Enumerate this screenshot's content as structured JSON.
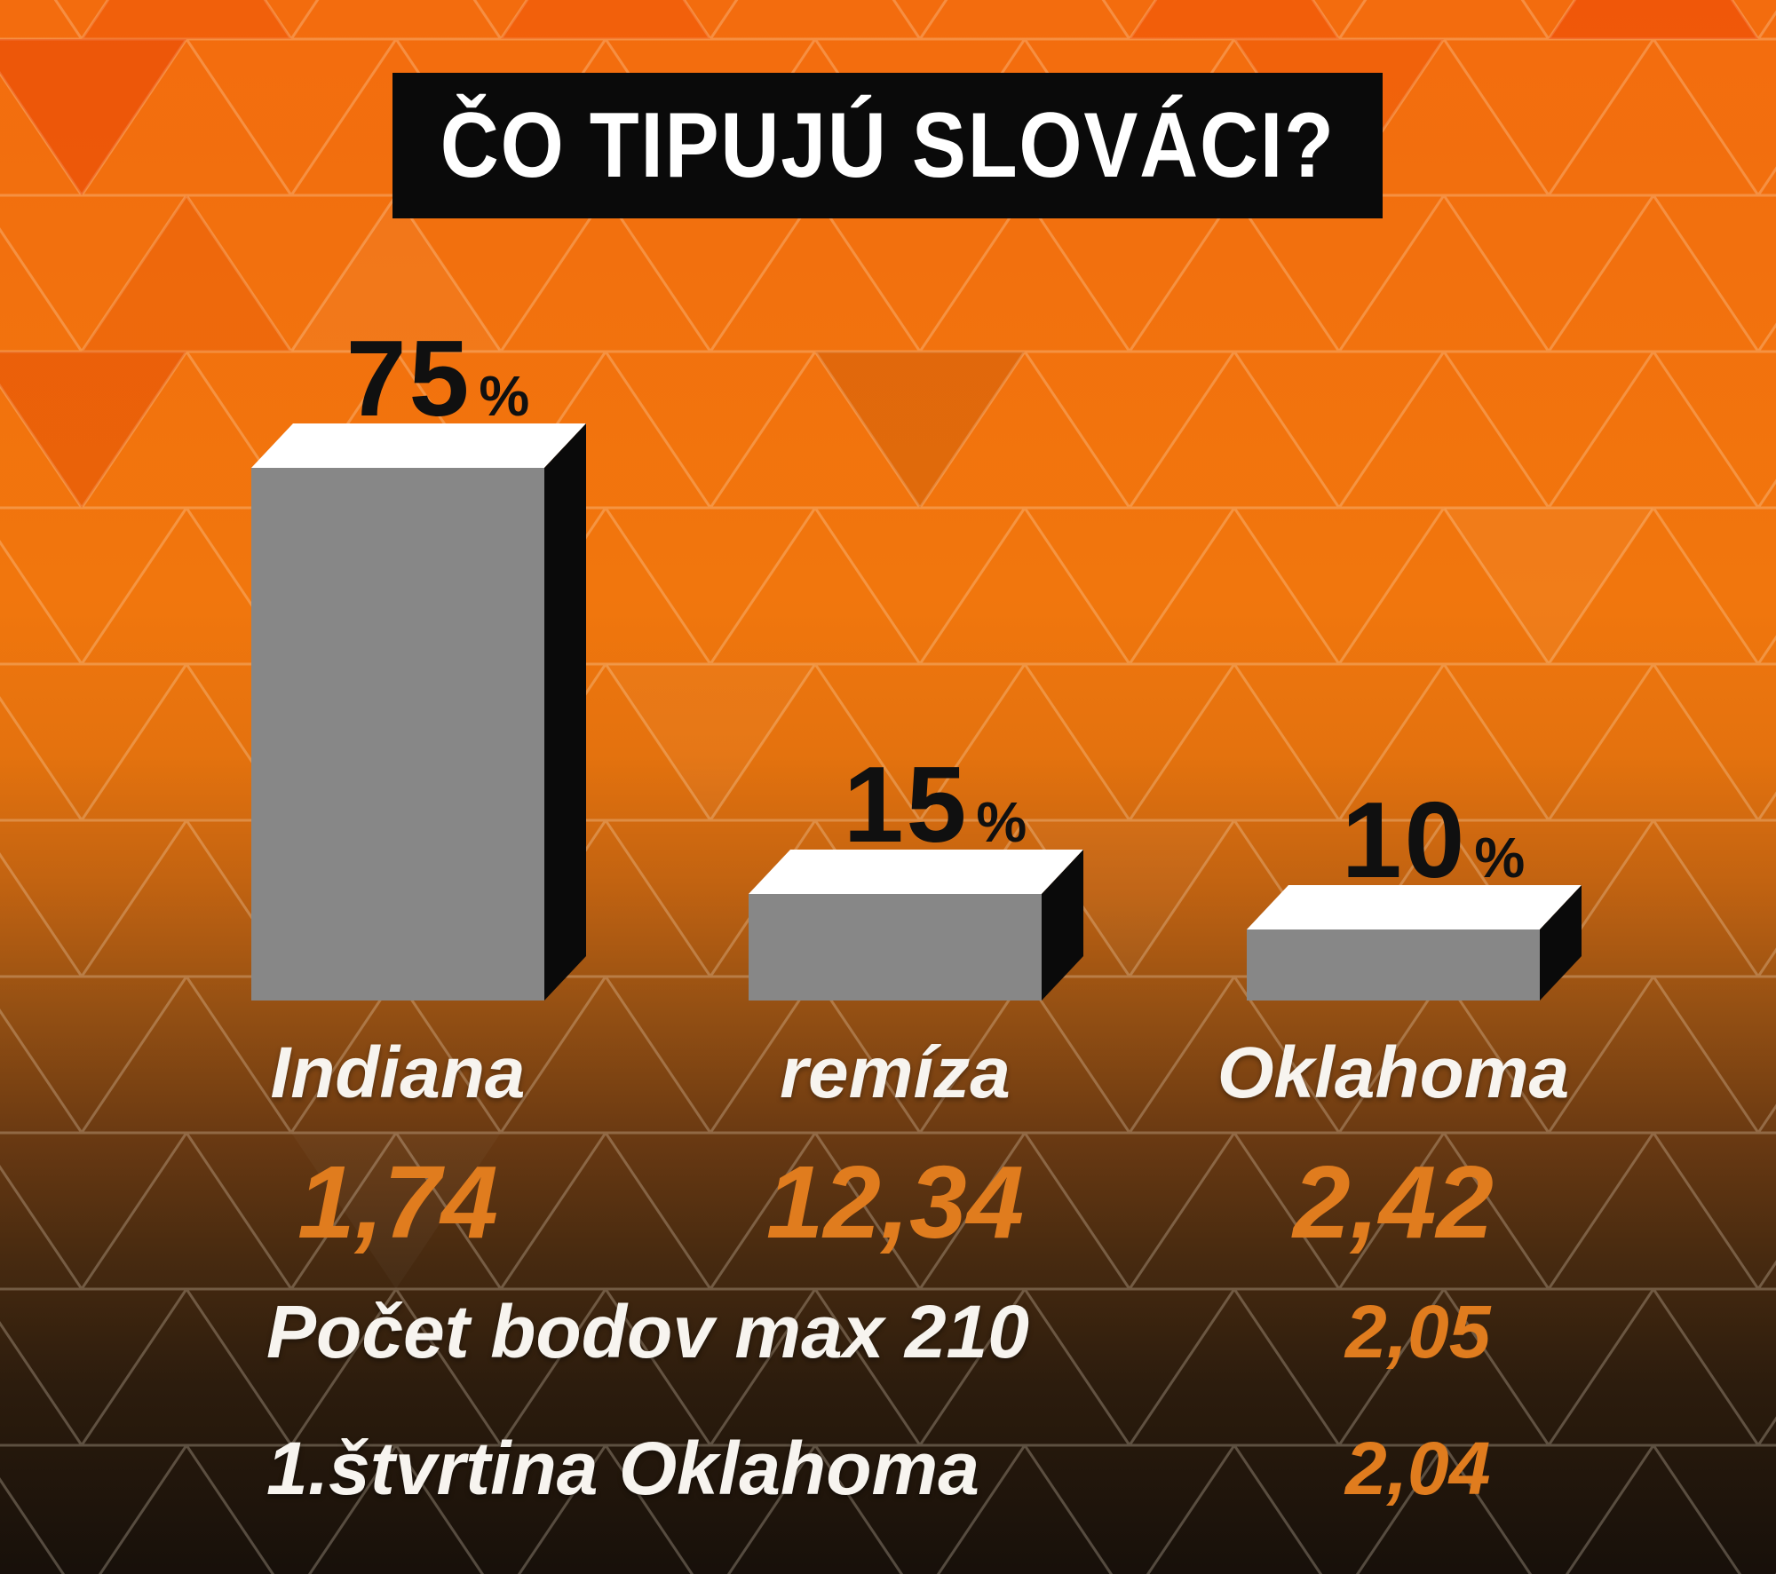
{
  "title": "ČO TIPUJÚ SLOVÁCI?",
  "chart_data": {
    "type": "bar",
    "title": "ČO TIPUJÚ SLOVÁCI?",
    "unit": "%",
    "categories": [
      "Indiana",
      "remíza",
      "Oklahoma"
    ],
    "values": [
      75,
      15,
      10
    ],
    "ylim": [
      0,
      75
    ],
    "grid": false,
    "legend": "none",
    "bars": [
      {
        "label": "Indiana",
        "percent": 75,
        "percent_label": "75",
        "odds": "1,74"
      },
      {
        "label": "remíza",
        "percent": 15,
        "percent_label": "15",
        "odds": "12,34"
      },
      {
        "label": "Oklahoma",
        "percent": 10,
        "percent_label": "10",
        "odds": "2,42"
      }
    ],
    "extra_markets": [
      {
        "label": "Počet bodov max 210",
        "odds": "2,05"
      },
      {
        "label": "1.štvrtina Oklahoma",
        "odds": "2,04"
      }
    ],
    "colors": {
      "bar_front": "#878787",
      "bar_top": "#ffffff",
      "bar_side": "#0a0a0a",
      "percent_text": "#101010",
      "label_text": "#f7f4ef",
      "odds_text": "#e07c1e",
      "title_bg": "#0a0a0a",
      "title_text": "#ffffff",
      "bg_top": "#f36c0e",
      "bg_bottom": "#17100a"
    }
  }
}
